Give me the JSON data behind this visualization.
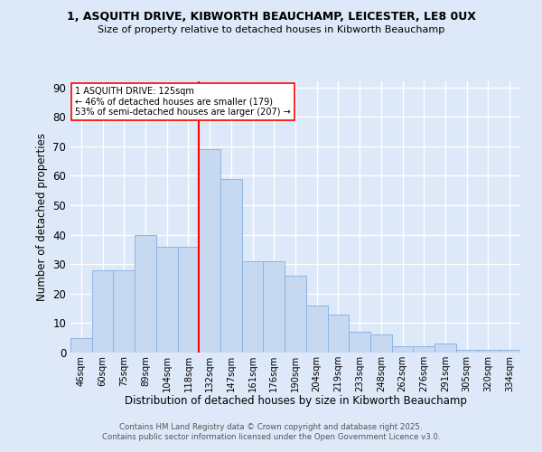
{
  "title1": "1, ASQUITH DRIVE, KIBWORTH BEAUCHAMP, LEICESTER, LE8 0UX",
  "title2": "Size of property relative to detached houses in Kibworth Beauchamp",
  "xlabel": "Distribution of detached houses by size in Kibworth Beauchamp",
  "ylabel": "Number of detached properties",
  "categories": [
    "46sqm",
    "60sqm",
    "75sqm",
    "89sqm",
    "104sqm",
    "118sqm",
    "132sqm",
    "147sqm",
    "161sqm",
    "176sqm",
    "190sqm",
    "204sqm",
    "219sqm",
    "233sqm",
    "248sqm",
    "262sqm",
    "276sqm",
    "291sqm",
    "305sqm",
    "320sqm",
    "334sqm"
  ],
  "values": [
    5,
    28,
    28,
    40,
    36,
    36,
    69,
    59,
    31,
    31,
    26,
    16,
    13,
    7,
    6,
    2,
    2,
    3,
    1,
    1,
    1
  ],
  "bar_color": "#c6d9f0",
  "bar_edge_color": "#8db4e2",
  "vline_color": "red",
  "annotation_text": "1 ASQUITH DRIVE: 125sqm\n← 46% of detached houses are smaller (179)\n53% of semi-detached houses are larger (207) →",
  "annotation_box_color": "white",
  "annotation_box_edge": "red",
  "ylim": [
    0,
    92
  ],
  "yticks": [
    0,
    10,
    20,
    30,
    40,
    50,
    60,
    70,
    80,
    90
  ],
  "footer1": "Contains HM Land Registry data © Crown copyright and database right 2025.",
  "footer2": "Contains public sector information licensed under the Open Government Licence v3.0.",
  "background_color": "#dde8f8",
  "grid_color": "white"
}
